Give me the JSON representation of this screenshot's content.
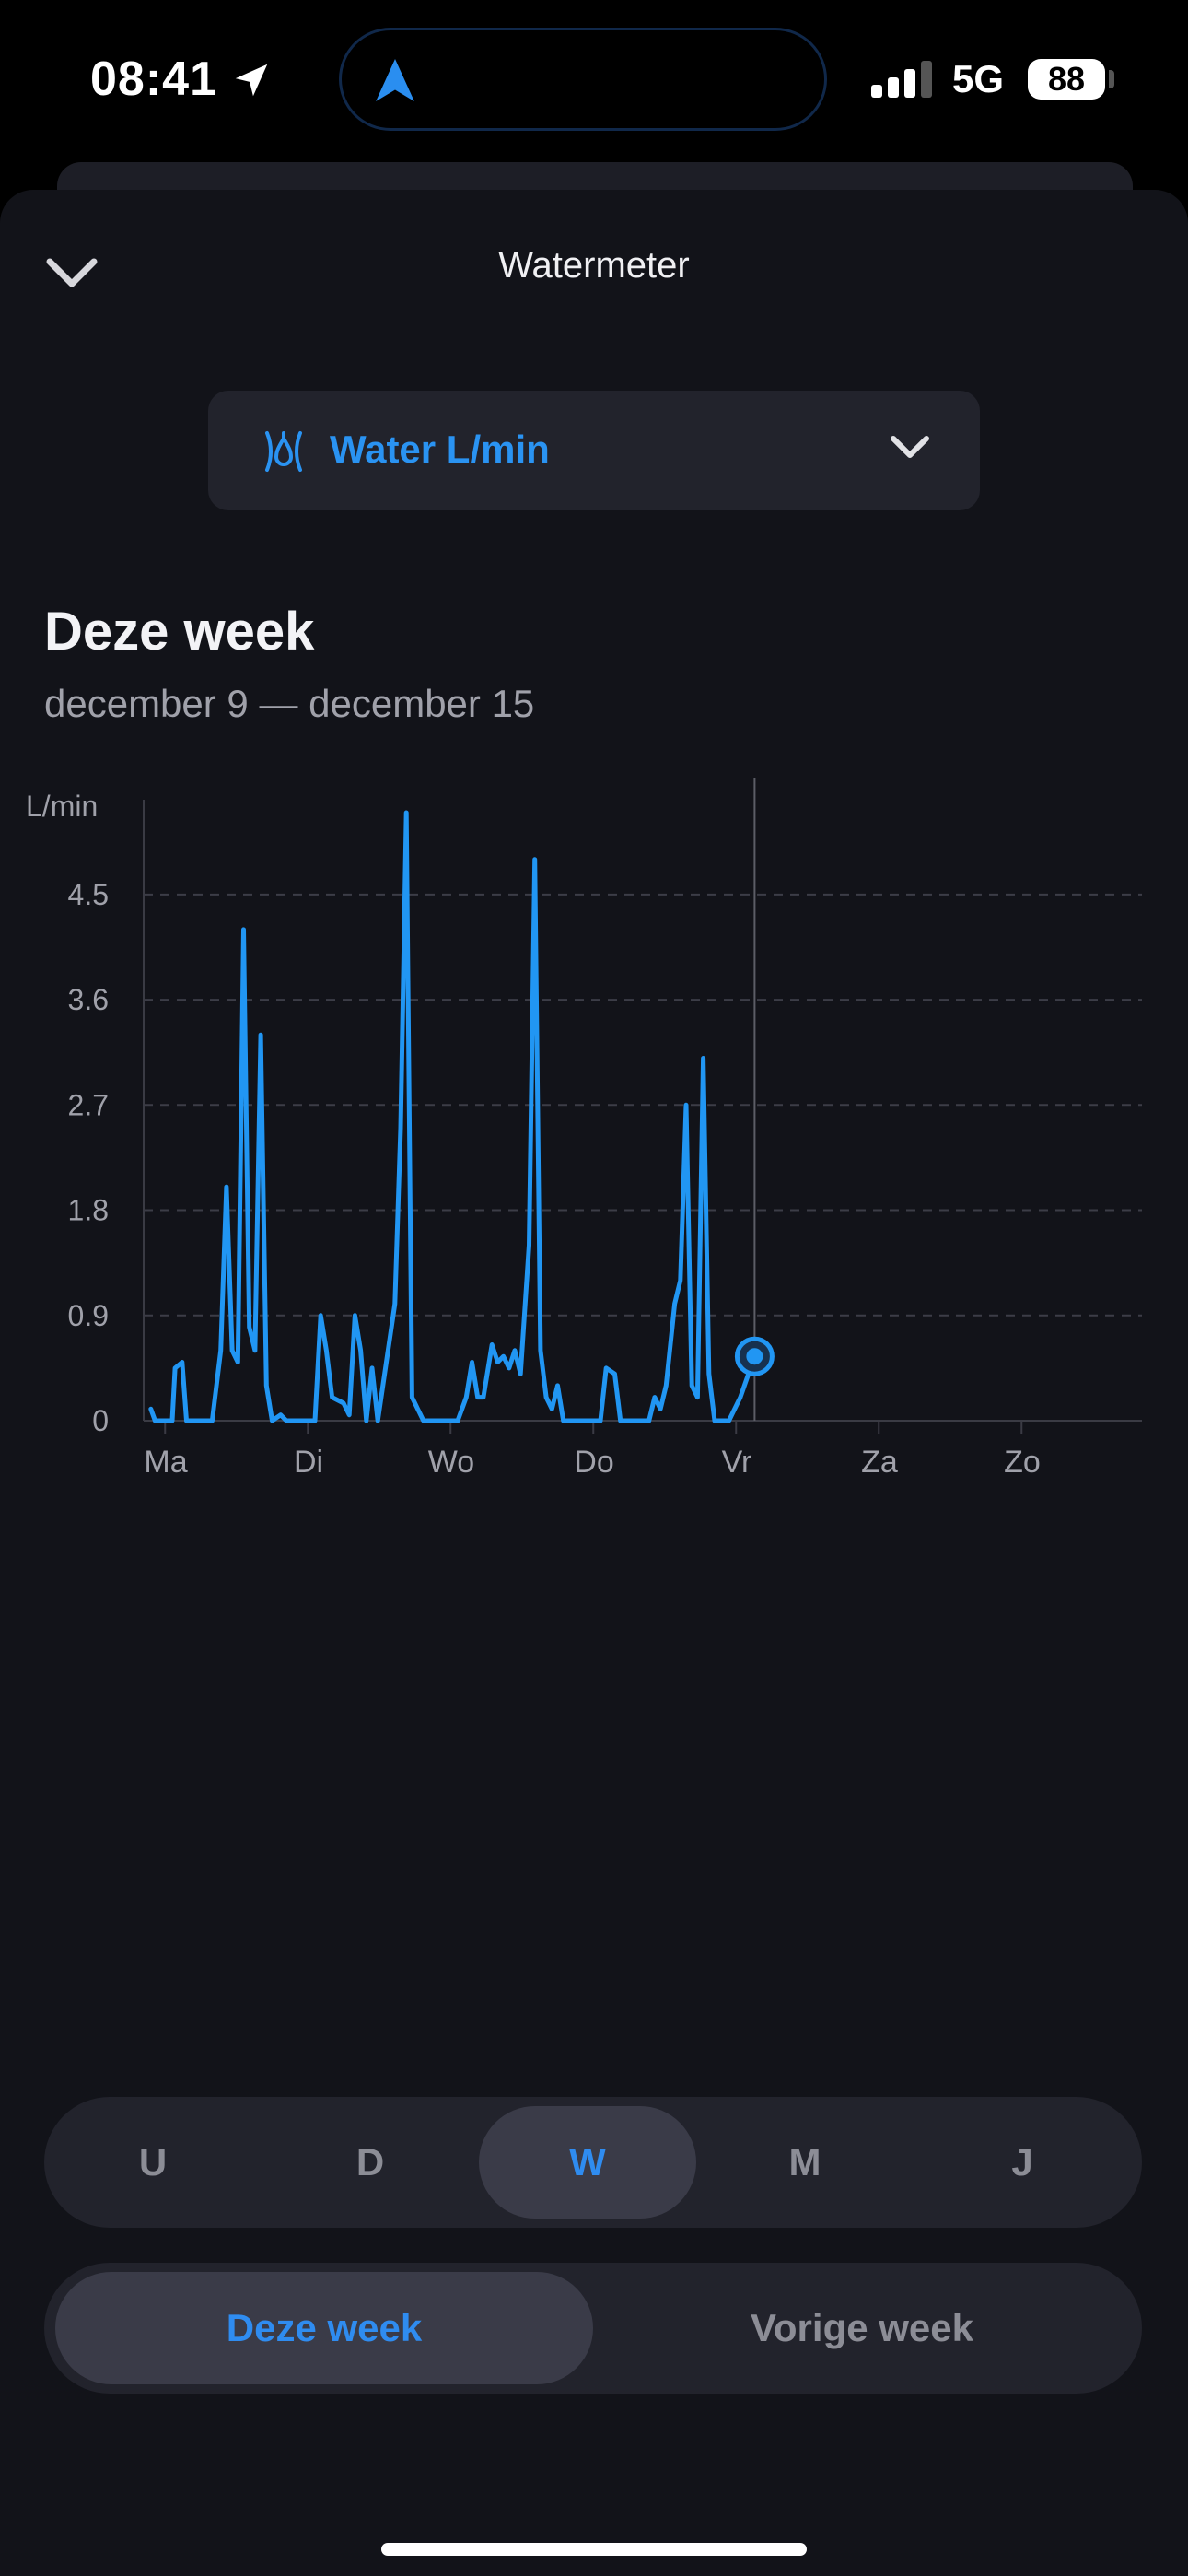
{
  "status": {
    "time": "08:41",
    "network": "5G",
    "battery": "88"
  },
  "header": {
    "title": "Watermeter"
  },
  "selector": {
    "label": "Water L/min",
    "icon": "water-meter-icon"
  },
  "period": {
    "title": "Deze week",
    "range": "december 9 — december 15"
  },
  "chart_data": {
    "type": "line",
    "ylabel": "L/min",
    "ylim": [
      0,
      5.2
    ],
    "yticks": [
      "0",
      "0.9",
      "1.8",
      "2.7",
      "3.6",
      "4.5"
    ],
    "categories": [
      "Ma",
      "Di",
      "Wo",
      "Do",
      "Vr",
      "Za",
      "Zo"
    ],
    "grid": "dashed-horizontal",
    "color": "#2196f3",
    "points": [
      [
        0.05,
        0.1
      ],
      [
        0.08,
        0.0
      ],
      [
        0.2,
        0.0
      ],
      [
        0.22,
        0.45
      ],
      [
        0.27,
        0.5
      ],
      [
        0.3,
        0.0
      ],
      [
        0.48,
        0.0
      ],
      [
        0.54,
        0.6
      ],
      [
        0.58,
        2.0
      ],
      [
        0.62,
        0.6
      ],
      [
        0.66,
        0.5
      ],
      [
        0.7,
        4.2
      ],
      [
        0.74,
        0.8
      ],
      [
        0.78,
        0.6
      ],
      [
        0.82,
        3.3
      ],
      [
        0.86,
        0.3
      ],
      [
        0.9,
        0.0
      ],
      [
        0.96,
        0.05
      ],
      [
        1.0,
        0.0
      ],
      [
        1.2,
        0.0
      ],
      [
        1.24,
        0.9
      ],
      [
        1.28,
        0.6
      ],
      [
        1.32,
        0.2
      ],
      [
        1.4,
        0.15
      ],
      [
        1.44,
        0.05
      ],
      [
        1.48,
        0.9
      ],
      [
        1.52,
        0.6
      ],
      [
        1.56,
        0.0
      ],
      [
        1.6,
        0.45
      ],
      [
        1.64,
        0.0
      ],
      [
        1.7,
        0.5
      ],
      [
        1.76,
        1.0
      ],
      [
        1.8,
        2.5
      ],
      [
        1.84,
        5.2
      ],
      [
        1.88,
        0.2
      ],
      [
        1.92,
        0.1
      ],
      [
        1.96,
        0.0
      ],
      [
        2.2,
        0.0
      ],
      [
        2.26,
        0.2
      ],
      [
        2.3,
        0.5
      ],
      [
        2.34,
        0.2
      ],
      [
        2.38,
        0.2
      ],
      [
        2.44,
        0.65
      ],
      [
        2.48,
        0.5
      ],
      [
        2.52,
        0.55
      ],
      [
        2.56,
        0.45
      ],
      [
        2.6,
        0.6
      ],
      [
        2.64,
        0.4
      ],
      [
        2.7,
        1.5
      ],
      [
        2.74,
        4.8
      ],
      [
        2.78,
        0.6
      ],
      [
        2.82,
        0.2
      ],
      [
        2.86,
        0.1
      ],
      [
        2.9,
        0.3
      ],
      [
        2.94,
        0.0
      ],
      [
        3.2,
        0.0
      ],
      [
        3.24,
        0.45
      ],
      [
        3.3,
        0.4
      ],
      [
        3.34,
        0.0
      ],
      [
        3.54,
        0.0
      ],
      [
        3.58,
        0.2
      ],
      [
        3.62,
        0.1
      ],
      [
        3.66,
        0.3
      ],
      [
        3.72,
        1.0
      ],
      [
        3.76,
        1.2
      ],
      [
        3.8,
        2.7
      ],
      [
        3.84,
        0.3
      ],
      [
        3.88,
        0.2
      ],
      [
        3.92,
        3.1
      ],
      [
        3.96,
        0.4
      ],
      [
        4.0,
        0.0
      ],
      [
        4.1,
        0.0
      ],
      [
        4.18,
        0.2
      ],
      [
        4.28,
        0.55
      ]
    ],
    "current_marker": {
      "x": 4.28,
      "y": 0.55
    }
  },
  "resolution_tabs": [
    {
      "label": "U",
      "active": false
    },
    {
      "label": "D",
      "active": false
    },
    {
      "label": "W",
      "active": true
    },
    {
      "label": "M",
      "active": false
    },
    {
      "label": "J",
      "active": false
    }
  ],
  "range_tabs": [
    {
      "label": "Deze week",
      "active": true
    },
    {
      "label": "Vorige week",
      "active": false
    }
  ]
}
